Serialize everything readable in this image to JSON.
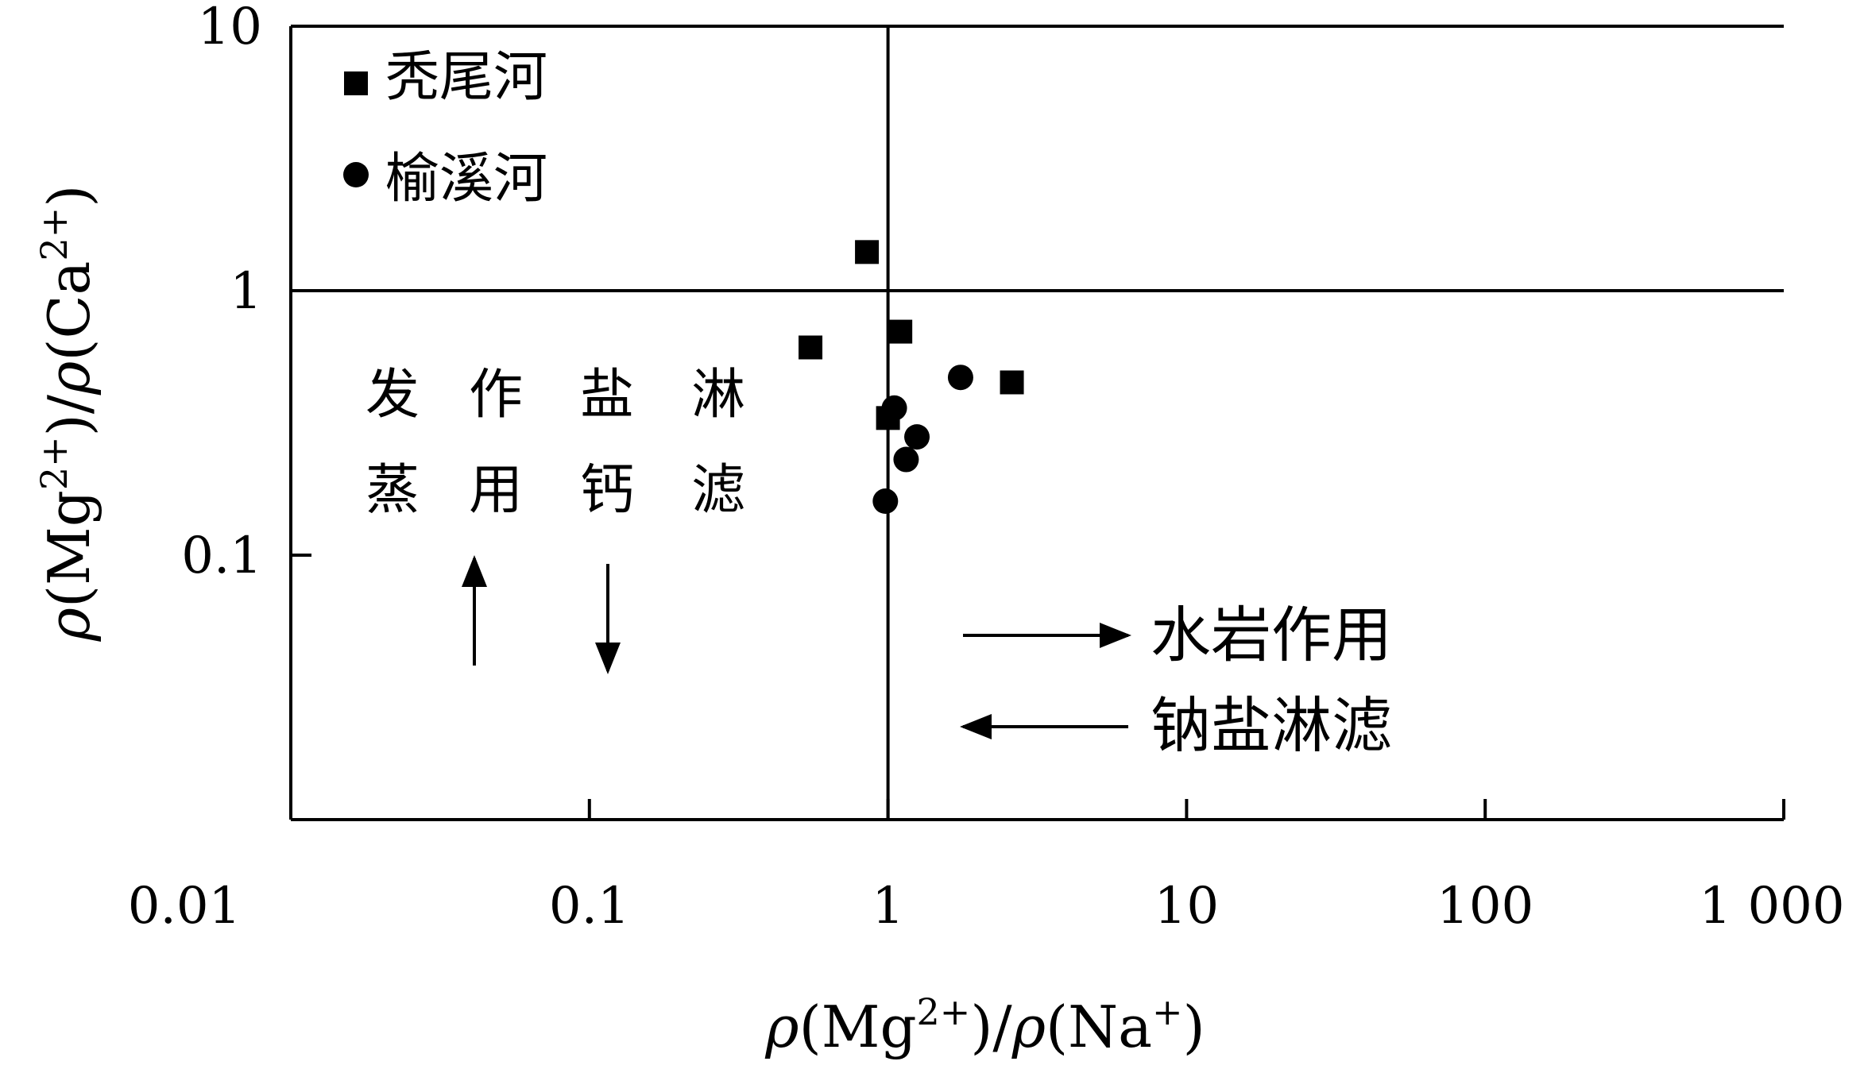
{
  "chart_data": {
    "type": "scatter",
    "x_scale": "log",
    "y_scale": "log",
    "xlim": [
      0.01,
      1000
    ],
    "ylim": [
      0.01,
      10
    ],
    "x_tick_labels": [
      "0.01",
      "0.1",
      "1",
      "10",
      "100",
      "1 000"
    ],
    "y_tick_labels": [
      "0.1",
      "1",
      "10"
    ],
    "xlabel": {
      "rho1": "ρ",
      "open1": "(Mg",
      "sup1": "2+",
      "close1": ")/",
      "rho2": "ρ",
      "open2": "(Na",
      "sup2": "+",
      "close2": ")"
    },
    "ylabel": {
      "rho1": "ρ",
      "open1": "(Mg",
      "sup1": "2+",
      "close1": ")/",
      "rho2": "ρ",
      "open2": "(Ca",
      "sup2": "2+",
      "close2": ")"
    },
    "reference_lines": {
      "x": 1,
      "y": 1
    },
    "grid": false,
    "legend_position": "top-left",
    "series": [
      {
        "name": "秃尾河",
        "marker": "square",
        "points": [
          [
            0.85,
            1.4
          ],
          [
            1.1,
            0.7
          ],
          [
            0.55,
            0.61
          ],
          [
            2.6,
            0.45
          ],
          [
            1.0,
            0.33
          ]
        ]
      },
      {
        "name": "榆溪河",
        "marker": "circle",
        "points": [
          [
            1.75,
            0.47
          ],
          [
            1.05,
            0.36
          ],
          [
            1.25,
            0.28
          ],
          [
            1.15,
            0.23
          ],
          [
            0.98,
            0.16
          ]
        ]
      }
    ],
    "annotations": {
      "evaporation": "蒸发作用",
      "calcium_leaching": "钙盐淋滤",
      "water_rock": "水岩作用",
      "sodium_leaching": "钠盐淋滤"
    },
    "colors": {
      "marker": "#000000",
      "axis": "#000000",
      "background": "#ffffff"
    }
  }
}
